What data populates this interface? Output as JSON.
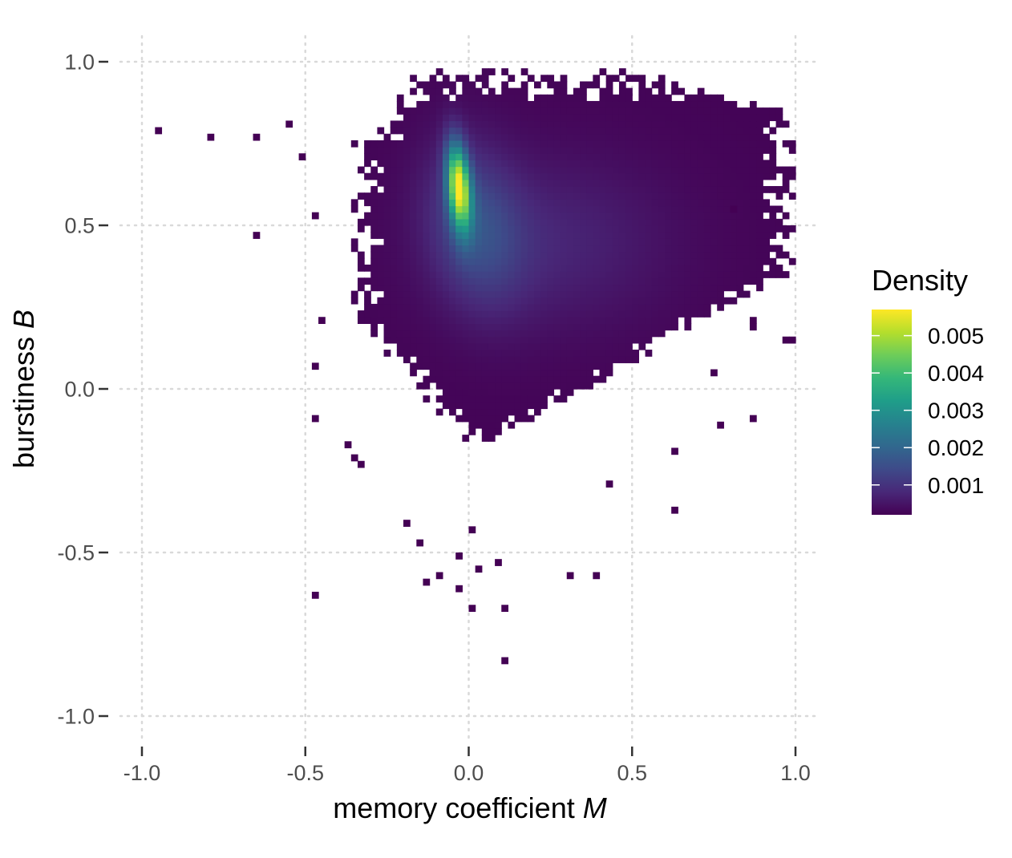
{
  "chart_data": {
    "type": "heatmap",
    "title": "",
    "xlabel": "memory coefficient",
    "xlabel_symbol": "M",
    "ylabel": "burstiness",
    "ylabel_symbol": "B",
    "xlim": [
      -1.0,
      1.0
    ],
    "ylim": [
      -1.0,
      1.0
    ],
    "x_ticks": [
      -1.0,
      -0.5,
      0.0,
      0.5,
      1.0
    ],
    "y_ticks": [
      -1.0,
      -0.5,
      0.0,
      0.5,
      1.0
    ],
    "x_tick_labels": [
      "-1.0",
      "-0.5",
      "0.0",
      "0.5",
      "1.0"
    ],
    "y_tick_labels": [
      "-1.0",
      "-0.5",
      "0.0",
      "0.5",
      "1.0"
    ],
    "grid": true,
    "grid_style": "dotted",
    "bin_size": 0.02,
    "colormap": "viridis",
    "color_low": "#440154",
    "color_high": "#fde725",
    "legend": {
      "title": "Density",
      "placement": "right",
      "range": [
        0.0002,
        0.0057
      ],
      "tick_values": [
        0.005,
        0.004,
        0.003,
        0.002,
        0.001
      ],
      "tick_labels": [
        "0.005",
        "0.004",
        "0.003",
        "0.002",
        "0.001"
      ]
    },
    "density_model": {
      "peak": {
        "x": -0.03,
        "y": 0.62,
        "value": 0.0056
      },
      "components": [
        {
          "x": -0.03,
          "y": 0.62,
          "sx": 0.025,
          "sy": 0.09,
          "rho": -0.3,
          "weight": 0.0048
        },
        {
          "x": 0.02,
          "y": 0.5,
          "sx": 0.1,
          "sy": 0.17,
          "rho": -0.2,
          "weight": 0.0011
        },
        {
          "x": 0.25,
          "y": 0.45,
          "sx": 0.25,
          "sy": 0.18,
          "rho": 0.0,
          "weight": 0.0005
        }
      ],
      "base_value": 0.00025
    },
    "outliers": [
      {
        "x": -0.95,
        "y": 0.79
      },
      {
        "x": -0.8,
        "y": 0.77
      },
      {
        "x": -0.65,
        "y": 0.77
      },
      {
        "x": -0.65,
        "y": 0.47
      },
      {
        "x": -0.55,
        "y": 0.81
      },
      {
        "x": -0.52,
        "y": 0.71
      },
      {
        "x": -0.47,
        "y": 0.53
      },
      {
        "x": -0.46,
        "y": 0.21
      },
      {
        "x": -0.47,
        "y": 0.07
      },
      {
        "x": -0.47,
        "y": -0.09
      },
      {
        "x": -0.47,
        "y": -0.63
      },
      {
        "x": -0.38,
        "y": -0.18
      },
      {
        "x": -0.35,
        "y": -0.22
      },
      {
        "x": -0.33,
        "y": -0.23
      },
      {
        "x": -0.2,
        "y": -0.41
      },
      {
        "x": -0.15,
        "y": -0.48
      },
      {
        "x": -0.13,
        "y": -0.59
      },
      {
        "x": -0.1,
        "y": -0.56
      },
      {
        "x": -0.04,
        "y": -0.61
      },
      {
        "x": -0.04,
        "y": -0.51
      },
      {
        "x": 0.0,
        "y": -0.43
      },
      {
        "x": 0.0,
        "y": -0.67
      },
      {
        "x": 0.03,
        "y": -0.55
      },
      {
        "x": 0.1,
        "y": -0.67
      },
      {
        "x": 0.08,
        "y": -0.53
      },
      {
        "x": 0.11,
        "y": -0.83
      },
      {
        "x": 0.3,
        "y": -0.58
      },
      {
        "x": 0.39,
        "y": -0.56
      },
      {
        "x": 0.43,
        "y": -0.28
      },
      {
        "x": 0.63,
        "y": -0.38
      },
      {
        "x": 0.62,
        "y": -0.19
      },
      {
        "x": 0.74,
        "y": 0.05
      },
      {
        "x": 0.76,
        "y": -0.11
      },
      {
        "x": 0.86,
        "y": -0.09
      },
      {
        "x": 0.86,
        "y": 0.21
      },
      {
        "x": 0.96,
        "y": 0.15
      },
      {
        "x": 0.98,
        "y": 0.15
      },
      {
        "x": 0.81,
        "y": 0.55
      },
      {
        "x": 0.86,
        "y": 0.19
      }
    ]
  }
}
